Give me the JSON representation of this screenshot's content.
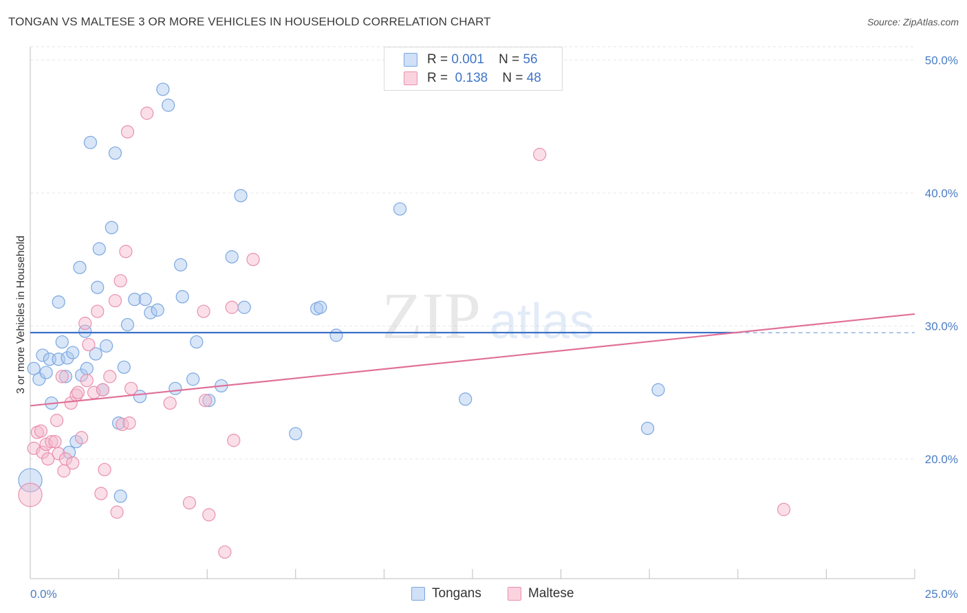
{
  "header": {
    "title": "TONGAN VS MALTESE 3 OR MORE VEHICLES IN HOUSEHOLD CORRELATION CHART",
    "source": "Source: ZipAtlas.com"
  },
  "watermark": {
    "zip": "ZIP",
    "atlas": "atlas"
  },
  "legend": {
    "rows": [
      {
        "r_label": "R =",
        "r_value": "0.001",
        "n_label": "N =",
        "n_value": "56",
        "color": "#a9c8f0"
      },
      {
        "r_label": "R =",
        "r_value": "0.138",
        "n_label": "N =",
        "n_value": "48",
        "color": "#f5b8cb"
      }
    ]
  },
  "bottom_legend": {
    "tongans": "Tongans",
    "maltese": "Maltese"
  },
  "chart_data": {
    "type": "scatter",
    "title": "TONGAN VS MALTESE 3 OR MORE VEHICLES IN HOUSEHOLD CORRELATION CHART",
    "xlabel": "",
    "ylabel": "3 or more Vehicles in Household",
    "xlim": [
      0,
      25
    ],
    "ylim": [
      11,
      51
    ],
    "x_tick_labels": [
      "0.0%",
      "25.0%"
    ],
    "y_ticks": [
      20,
      30,
      40,
      50
    ],
    "y_tick_labels": [
      "20.0%",
      "30.0%",
      "40.0%",
      "50.0%"
    ],
    "grid": true,
    "legend_position": "top-center",
    "series": [
      {
        "name": "Tongans",
        "color": "#a9c8f0",
        "stroke": "#7aa6e0",
        "trend_color": "#3a6fc4",
        "trend": {
          "x": [
            0,
            25
          ],
          "y": [
            29.5,
            29.5
          ],
          "solid_until": 20
        },
        "points": [
          {
            "x": 0.1,
            "y": 26.8
          },
          {
            "x": 0.25,
            "y": 26.0
          },
          {
            "x": 0.35,
            "y": 27.8
          },
          {
            "x": 0.45,
            "y": 26.5
          },
          {
            "x": 0.55,
            "y": 27.5
          },
          {
            "x": 0.6,
            "y": 24.2
          },
          {
            "x": 0.8,
            "y": 27.5
          },
          {
            "x": 0.8,
            "y": 31.8
          },
          {
            "x": 0.9,
            "y": 28.8
          },
          {
            "x": 1.0,
            "y": 26.2
          },
          {
            "x": 1.05,
            "y": 27.6
          },
          {
            "x": 1.1,
            "y": 20.5
          },
          {
            "x": 1.2,
            "y": 28.0
          },
          {
            "x": 1.3,
            "y": 21.3
          },
          {
            "x": 1.4,
            "y": 34.4
          },
          {
            "x": 1.45,
            "y": 26.3
          },
          {
            "x": 1.55,
            "y": 29.6
          },
          {
            "x": 1.6,
            "y": 26.8
          },
          {
            "x": 1.7,
            "y": 43.8
          },
          {
            "x": 1.85,
            "y": 27.9
          },
          {
            "x": 1.9,
            "y": 32.9
          },
          {
            "x": 1.95,
            "y": 35.8
          },
          {
            "x": 2.05,
            "y": 25.2
          },
          {
            "x": 2.15,
            "y": 28.5
          },
          {
            "x": 2.3,
            "y": 37.4
          },
          {
            "x": 2.4,
            "y": 43.0
          },
          {
            "x": 2.5,
            "y": 22.7
          },
          {
            "x": 2.55,
            "y": 17.2
          },
          {
            "x": 2.65,
            "y": 26.9
          },
          {
            "x": 2.75,
            "y": 30.1
          },
          {
            "x": 2.95,
            "y": 32.0
          },
          {
            "x": 3.1,
            "y": 24.7
          },
          {
            "x": 3.25,
            "y": 32.0
          },
          {
            "x": 3.4,
            "y": 31.0
          },
          {
            "x": 3.6,
            "y": 31.2
          },
          {
            "x": 3.75,
            "y": 47.8
          },
          {
            "x": 3.9,
            "y": 46.6
          },
          {
            "x": 4.1,
            "y": 25.3
          },
          {
            "x": 4.25,
            "y": 34.6
          },
          {
            "x": 4.3,
            "y": 32.2
          },
          {
            "x": 4.6,
            "y": 26.0
          },
          {
            "x": 4.7,
            "y": 28.8
          },
          {
            "x": 5.05,
            "y": 24.4
          },
          {
            "x": 5.4,
            "y": 25.5
          },
          {
            "x": 5.7,
            "y": 35.2
          },
          {
            "x": 5.95,
            "y": 39.8
          },
          {
            "x": 6.05,
            "y": 31.4
          },
          {
            "x": 7.5,
            "y": 21.9
          },
          {
            "x": 8.1,
            "y": 31.3
          },
          {
            "x": 8.2,
            "y": 31.4
          },
          {
            "x": 8.65,
            "y": 29.3
          },
          {
            "x": 10.45,
            "y": 38.8
          },
          {
            "x": 12.3,
            "y": 24.5
          },
          {
            "x": 17.45,
            "y": 22.3
          },
          {
            "x": 17.75,
            "y": 25.2
          },
          {
            "x": 0.0,
            "y": 18.4
          }
        ]
      },
      {
        "name": "Maltese",
        "color": "#f5b8cb",
        "stroke": "#e98fae",
        "trend_color": "#e07099",
        "trend": {
          "x": [
            0,
            25
          ],
          "y": [
            24.0,
            30.9
          ],
          "solid_until": 25
        },
        "points": [
          {
            "x": 0.1,
            "y": 20.8
          },
          {
            "x": 0.2,
            "y": 22.0
          },
          {
            "x": 0.3,
            "y": 22.1
          },
          {
            "x": 0.35,
            "y": 20.5
          },
          {
            "x": 0.45,
            "y": 21.1
          },
          {
            "x": 0.5,
            "y": 20.0
          },
          {
            "x": 0.6,
            "y": 21.3
          },
          {
            "x": 0.7,
            "y": 21.3
          },
          {
            "x": 0.75,
            "y": 22.9
          },
          {
            "x": 0.8,
            "y": 20.4
          },
          {
            "x": 0.9,
            "y": 26.2
          },
          {
            "x": 0.95,
            "y": 19.1
          },
          {
            "x": 1.0,
            "y": 20.0
          },
          {
            "x": 1.15,
            "y": 24.2
          },
          {
            "x": 1.2,
            "y": 19.7
          },
          {
            "x": 1.3,
            "y": 24.8
          },
          {
            "x": 1.35,
            "y": 25.0
          },
          {
            "x": 1.45,
            "y": 21.6
          },
          {
            "x": 1.55,
            "y": 30.2
          },
          {
            "x": 1.6,
            "y": 25.9
          },
          {
            "x": 1.65,
            "y": 28.6
          },
          {
            "x": 1.8,
            "y": 25.0
          },
          {
            "x": 1.9,
            "y": 31.1
          },
          {
            "x": 2.0,
            "y": 17.4
          },
          {
            "x": 2.05,
            "y": 25.2
          },
          {
            "x": 2.1,
            "y": 19.2
          },
          {
            "x": 2.25,
            "y": 26.2
          },
          {
            "x": 2.4,
            "y": 31.9
          },
          {
            "x": 2.45,
            "y": 16.0
          },
          {
            "x": 2.55,
            "y": 33.4
          },
          {
            "x": 2.6,
            "y": 22.6
          },
          {
            "x": 2.7,
            "y": 35.6
          },
          {
            "x": 2.75,
            "y": 44.6
          },
          {
            "x": 2.8,
            "y": 22.7
          },
          {
            "x": 2.85,
            "y": 25.3
          },
          {
            "x": 3.3,
            "y": 46.0
          },
          {
            "x": 3.95,
            "y": 24.2
          },
          {
            "x": 4.5,
            "y": 16.7
          },
          {
            "x": 4.9,
            "y": 31.1
          },
          {
            "x": 4.95,
            "y": 24.4
          },
          {
            "x": 5.05,
            "y": 15.8
          },
          {
            "x": 5.5,
            "y": 13.0
          },
          {
            "x": 5.7,
            "y": 31.4
          },
          {
            "x": 5.75,
            "y": 21.4
          },
          {
            "x": 6.3,
            "y": 35.0
          },
          {
            "x": 14.4,
            "y": 42.9
          },
          {
            "x": 21.3,
            "y": 16.2
          },
          {
            "x": 0.0,
            "y": 17.3
          }
        ]
      }
    ]
  }
}
